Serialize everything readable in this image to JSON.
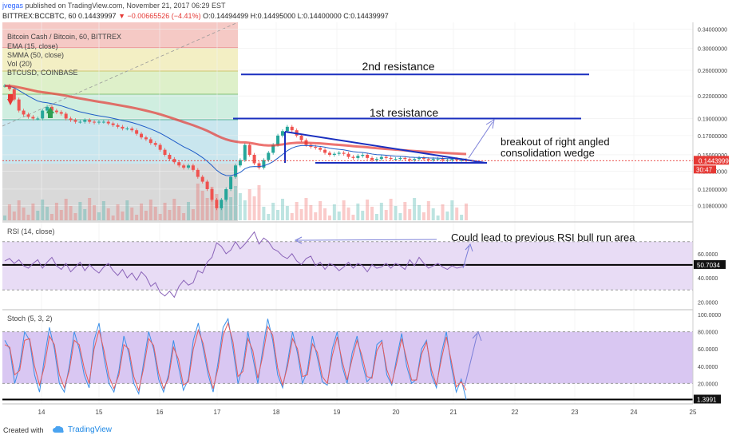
{
  "header": {
    "user": "jvegas",
    "published": " published on TradingView.com, November 21, 2017 06:29 EST",
    "ohlc_prefix": "BITTREX:BCCBTC, 60 0.14439997 ",
    "change": "▼ −0.00665526 (−4.41%)",
    "ohlc_values": " O:0.14494499 H:0.14495000 L:0.14400000 C:0.14439997"
  },
  "legend": {
    "symbol": "Bitcoin Cash / Bitcoin, 60, BITTREX",
    "ema": "EMA (15, close)",
    "smma": "SMMA (50, close)",
    "vol": "Vol (20)",
    "compare": "BTCUSD, COINBASE"
  },
  "annotations": {
    "resistance_2": "2nd resistance",
    "resistance_1": "1st resistance",
    "breakout_line1": "breakout of right angled",
    "breakout_line2": "consolidation wedge",
    "rsi_note": "Could lead to previous RSI bull run area"
  },
  "footer": {
    "created_with": "Created with",
    "brand": "TradingView"
  },
  "colors": {
    "resistance": "#1a2fbf",
    "ema": "#1e5cc7",
    "smma": "#e53935",
    "rsi_fill": "#e8dcf5",
    "stoch_fill": "#d9c7f2",
    "stoch_k": "#3b8fe8",
    "stoch_d": "#e55b5b",
    "bull": "#26a69a",
    "bear": "#ef5350",
    "price_tag": "#e53935"
  },
  "chart_data": [
    {
      "type": "candlestick",
      "title": "Bitcoin Cash / Bitcoin, 60, BITTREX",
      "x_tick_labels": [
        "14",
        "15",
        "16",
        "17",
        "18",
        "19",
        "20",
        "21",
        "22",
        "23",
        "24",
        "25"
      ],
      "y_tick_labels": [
        "0.34000000",
        "0.30000000",
        "0.26000000",
        "0.22000000",
        "0.19000000",
        "0.17000000",
        "0.15000000",
        "0.13500000",
        "0.12000000",
        "0.10800000"
      ],
      "y_scale": "log",
      "ylim": [
        0.098,
        0.355
      ],
      "last_price_label": "0.14439997",
      "last_price": 0.14439997,
      "countdown_label": "30:47",
      "close_series": [
        0.235,
        0.23,
        0.215,
        0.2,
        0.195,
        0.192,
        0.19,
        0.19,
        0.2,
        0.205,
        0.2,
        0.198,
        0.196,
        0.19,
        0.188,
        0.186,
        0.186,
        0.188,
        0.186,
        0.185,
        0.186,
        0.186,
        0.184,
        0.182,
        0.18,
        0.178,
        0.178,
        0.176,
        0.172,
        0.168,
        0.166,
        0.162,
        0.16,
        0.155,
        0.15,
        0.146,
        0.143,
        0.14,
        0.138,
        0.14,
        0.136,
        0.13,
        0.126,
        0.12,
        0.112,
        0.106,
        0.112,
        0.12,
        0.13,
        0.14,
        0.145,
        0.16,
        0.15,
        0.142,
        0.138,
        0.145,
        0.152,
        0.16,
        0.17,
        0.175,
        0.18,
        0.176,
        0.17,
        0.165,
        0.16,
        0.158,
        0.157,
        0.155,
        0.152,
        0.15,
        0.151,
        0.152,
        0.151,
        0.148,
        0.147,
        0.149,
        0.15,
        0.147,
        0.145,
        0.146,
        0.148,
        0.147,
        0.146,
        0.146,
        0.147,
        0.146,
        0.145,
        0.146,
        0.147,
        0.146,
        0.145,
        0.146,
        0.146,
        0.145,
        0.145,
        0.146,
        0.145,
        0.145,
        0.1445
      ],
      "resistance_levels": [
        {
          "label": "2nd resistance",
          "value": 0.253
        },
        {
          "label": "1st resistance",
          "value": 0.19
        }
      ],
      "wedge": {
        "top_start": 0.178,
        "top_end": 0.143,
        "support": 0.143
      },
      "date_start": "2017-11-13",
      "date_end": "2017-11-25"
    },
    {
      "type": "line",
      "title": "RSI (14, close)",
      "y_tick_labels": [
        "60.0000",
        "40.0000",
        "20.0000"
      ],
      "ylim": [
        15,
        85
      ],
      "band": [
        30,
        70
      ],
      "last_value_label": "50.7034",
      "last_value": 50.7034,
      "values": [
        54,
        56,
        52,
        55,
        50,
        48,
        52,
        55,
        48,
        53,
        57,
        50,
        47,
        52,
        45,
        49,
        53,
        46,
        51,
        47,
        44,
        49,
        52,
        46,
        42,
        47,
        40,
        44,
        38,
        45,
        41,
        33,
        36,
        28,
        25,
        29,
        24,
        33,
        38,
        34,
        36,
        46,
        44,
        53,
        57,
        69,
        66,
        60,
        63,
        70,
        64,
        68,
        73,
        78,
        68,
        73,
        70,
        64,
        62,
        58,
        56,
        60,
        54,
        51,
        56,
        58,
        50,
        53,
        47,
        52,
        50,
        46,
        49,
        53,
        48,
        52,
        50,
        45,
        51,
        48,
        49,
        52,
        48,
        52,
        50,
        47,
        55,
        50,
        57,
        52,
        48,
        50,
        52,
        49,
        47,
        50,
        48,
        49,
        51
      ]
    },
    {
      "type": "line",
      "title": "Stoch (5, 3, 2)",
      "y_tick_labels": [
        "100.0000",
        "80.0000",
        "60.0000",
        "40.0000",
        "20.0000"
      ],
      "ylim": [
        0,
        100
      ],
      "band": [
        20,
        80
      ],
      "last_value_label": "1.3991",
      "last_value": 1.3991,
      "series": [
        {
          "values": [
            70,
            60,
            20,
            40,
            80,
            70,
            30,
            10,
            50,
            85,
            60,
            20,
            10,
            40,
            80,
            60,
            30,
            15,
            70,
            90,
            50,
            20,
            10,
            35,
            75,
            55,
            20,
            8,
            45,
            80,
            60,
            25,
            10,
            30,
            70,
            40,
            12,
            25,
            70,
            90,
            60,
            30,
            10,
            45,
            85,
            95,
            60,
            20,
            40,
            80,
            50,
            20,
            60,
            95,
            70,
            30,
            15,
            45,
            80,
            55,
            20,
            35,
            75,
            50,
            22,
            18,
            60,
            80,
            40,
            20,
            55,
            75,
            45,
            22,
            28,
            65,
            70,
            30,
            18,
            50,
            78,
            40,
            20,
            25,
            60,
            70,
            30,
            15,
            55,
            80,
            40,
            10,
            25,
            1.4
          ]
        },
        {
          "values": [
            65,
            62,
            30,
            35,
            70,
            72,
            40,
            18,
            40,
            75,
            65,
            30,
            15,
            35,
            70,
            65,
            38,
            20,
            60,
            82,
            58,
            28,
            14,
            30,
            65,
            60,
            28,
            12,
            38,
            72,
            64,
            32,
            14,
            26,
            62,
            48,
            18,
            22,
            60,
            82,
            66,
            36,
            14,
            38,
            76,
            90,
            68,
            28,
            34,
            72,
            58,
            26,
            52,
            86,
            76,
            38,
            18,
            40,
            72,
            60,
            28,
            30,
            66,
            56,
            28,
            20,
            52,
            74,
            46,
            24,
            48,
            70,
            52,
            28,
            26,
            58,
            68,
            36,
            20,
            44,
            72,
            48,
            24,
            24,
            54,
            68,
            36,
            18,
            48,
            74,
            46,
            16,
            22,
            12
          ]
        }
      ]
    }
  ]
}
